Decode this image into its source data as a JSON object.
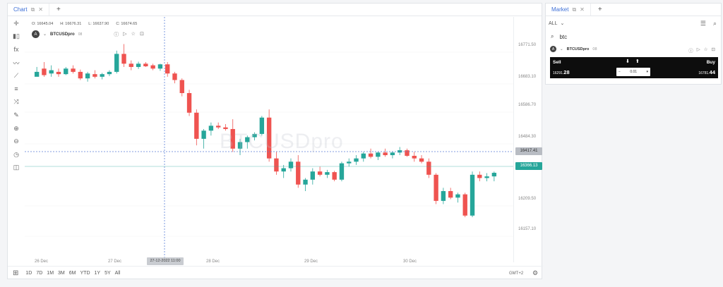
{
  "chart_tab": {
    "label": "Chart"
  },
  "market_tab": {
    "label": "Market"
  },
  "ohlc": {
    "open": "O: 16645.04",
    "high": "H: 16676.31",
    "low": "L: 16637.90",
    "close": "C: 16674.65"
  },
  "symbol": {
    "logo": "A",
    "name": "BTCUSDpro",
    "suffix": "08"
  },
  "watermark": "BTCUSDpro",
  "price_axis": {
    "labels": [
      "16771.50",
      "16683.10",
      "16586.70",
      "16484.30",
      "16209.50",
      "16157.10"
    ],
    "crosshair_price": "16417.41",
    "current_price": "16366.13"
  },
  "time_axis": {
    "labels": [
      "26 Dec",
      "27 Dec",
      "28 Dec",
      "29 Dec",
      "30 Dec"
    ],
    "crosshair_time": "27-12-2022 11:00"
  },
  "ranges": [
    "1D",
    "7D",
    "1M",
    "3M",
    "6M",
    "YTD",
    "1Y",
    "5Y",
    "All"
  ],
  "timezone": "GMT+2",
  "market": {
    "filter": "ALL",
    "search_value": "btc",
    "symbol_name": "BTCUSDpro",
    "symbol_suffix": "08",
    "sell_label": "Sell",
    "buy_label": "Buy",
    "sell_price_prefix": "16291.",
    "sell_price_big": "28",
    "buy_price_prefix": "16781.",
    "buy_price_big": "44",
    "quantity": "0.01"
  },
  "colors": {
    "up": "#26a69a",
    "down": "#ef5350",
    "accent": "#3d6fd6"
  },
  "chart_data": {
    "type": "candlestick",
    "x": [
      "26 Dec",
      "27 Dec",
      "28 Dec",
      "29 Dec",
      "30 Dec"
    ],
    "ylim": [
      16120,
      16800
    ],
    "candles": [
      [
        16660,
        16690,
        16665,
        16675
      ],
      [
        16685,
        16705,
        16660,
        16665
      ],
      [
        16670,
        16695,
        16660,
        16680
      ],
      [
        16675,
        16685,
        16660,
        16668
      ],
      [
        16668,
        16690,
        16665,
        16685
      ],
      [
        16685,
        16695,
        16670,
        16675
      ],
      [
        16675,
        16682,
        16650,
        16655
      ],
      [
        16655,
        16675,
        16645,
        16670
      ],
      [
        16668,
        16680,
        16655,
        16660
      ],
      [
        16660,
        16672,
        16652,
        16668
      ],
      [
        16668,
        16680,
        16662,
        16675
      ],
      [
        16675,
        16740,
        16670,
        16730
      ],
      [
        16730,
        16760,
        16690,
        16700
      ],
      [
        16700,
        16710,
        16680,
        16690
      ],
      [
        16690,
        16706,
        16684,
        16700
      ],
      [
        16700,
        16705,
        16690,
        16692
      ],
      [
        16695,
        16700,
        16680,
        16685
      ],
      [
        16685,
        16700,
        16678,
        16698
      ],
      [
        16698,
        16705,
        16660,
        16670
      ],
      [
        16670,
        16675,
        16640,
        16650
      ],
      [
        16650,
        16655,
        16600,
        16610
      ],
      [
        16610,
        16620,
        16540,
        16550
      ],
      [
        16550,
        16560,
        16450,
        16470
      ],
      [
        16470,
        16500,
        16440,
        16495
      ],
      [
        16495,
        16520,
        16480,
        16510
      ],
      [
        16510,
        16520,
        16500,
        16505
      ],
      [
        16505,
        16515,
        16495,
        16500
      ],
      [
        16500,
        16530,
        16430,
        16440
      ],
      [
        16440,
        16470,
        16420,
        16460
      ],
      [
        16460,
        16480,
        16440,
        16475
      ],
      [
        16475,
        16490,
        16465,
        16485
      ],
      [
        16485,
        16540,
        16480,
        16535
      ],
      [
        16535,
        16560,
        16400,
        16410
      ],
      [
        16410,
        16430,
        16360,
        16370
      ],
      [
        16370,
        16390,
        16350,
        16380
      ],
      [
        16380,
        16410,
        16370,
        16400
      ],
      [
        16400,
        16420,
        16320,
        16330
      ],
      [
        16330,
        16350,
        16310,
        16345
      ],
      [
        16345,
        16380,
        16330,
        16370
      ],
      [
        16370,
        16385,
        16355,
        16360
      ],
      [
        16360,
        16375,
        16350,
        16368
      ],
      [
        16368,
        16372,
        16340,
        16345
      ],
      [
        16345,
        16400,
        16340,
        16395
      ],
      [
        16395,
        16410,
        16385,
        16400
      ],
      [
        16400,
        16420,
        16390,
        16410
      ],
      [
        16410,
        16430,
        16400,
        16425
      ],
      [
        16425,
        16440,
        16410,
        16415
      ],
      [
        16415,
        16430,
        16405,
        16428
      ],
      [
        16428,
        16440,
        16415,
        16420
      ],
      [
        16420,
        16432,
        16410,
        16428
      ],
      [
        16428,
        16445,
        16420,
        16435
      ],
      [
        16435,
        16440,
        16415,
        16418
      ],
      [
        16418,
        16430,
        16400,
        16410
      ],
      [
        16410,
        16420,
        16395,
        16400
      ],
      [
        16400,
        16410,
        16350,
        16360
      ],
      [
        16360,
        16365,
        16270,
        16280
      ],
      [
        16280,
        16320,
        16270,
        16310
      ],
      [
        16310,
        16320,
        16285,
        16290
      ],
      [
        16290,
        16305,
        16275,
        16300
      ],
      [
        16300,
        16305,
        16230,
        16235
      ],
      [
        16235,
        16370,
        16230,
        16360
      ],
      [
        16360,
        16370,
        16340,
        16350
      ],
      [
        16350,
        16365,
        16340,
        16355
      ],
      [
        16355,
        16370,
        16340,
        16366
      ]
    ]
  }
}
